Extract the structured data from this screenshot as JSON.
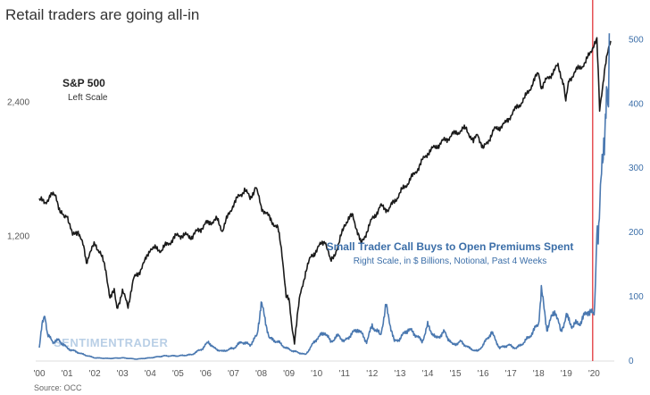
{
  "chart_data": {
    "type": "line",
    "title": "Retail traders are going all-in",
    "source": "Source: OCC",
    "watermark": "SENTIMENTRADER",
    "x_ticks": [
      "'00",
      "'01",
      "'02",
      "'03",
      "'04",
      "'05",
      "'06",
      "'07",
      "'08",
      "'09",
      "'10",
      "'11",
      "'12",
      "'13",
      "'14",
      "'15",
      "'16",
      "'17",
      "'18",
      "'19",
      "'20"
    ],
    "x_range": [
      2000.0,
      2020.6
    ],
    "vline_x": 2019.95,
    "left_axis": {
      "ticks": [
        "2,400",
        "1,200"
      ],
      "tick_values": [
        2400,
        1200
      ],
      "scale": "log",
      "range": [
        630,
        3550
      ]
    },
    "right_axis": {
      "ticks": [
        "500",
        "400",
        "300",
        "200",
        "100",
        "0"
      ],
      "tick_values": [
        500,
        400,
        300,
        200,
        100,
        0
      ],
      "range": [
        0,
        520
      ]
    },
    "annotations": {
      "sp_label": "S&P 500",
      "sp_sub": "Left Scale",
      "calls_label": "Small Trader Call Buys to Open Premiums Spent",
      "calls_sub": "Right Scale, in $ Billions, Notional, Past 4 Weeks"
    },
    "colors": {
      "sp500": "#1a1a1a",
      "calls": "#4a78b0",
      "vline": "#e0252b"
    },
    "series": [
      {
        "name": "S&P 500",
        "axis": "left",
        "x": [
          2000.0,
          2000.2,
          2000.4,
          2000.6,
          2000.75,
          2000.9,
          2001.0,
          2001.2,
          2001.4,
          2001.6,
          2001.7,
          2001.8,
          2002.0,
          2002.2,
          2002.4,
          2002.55,
          2002.7,
          2002.8,
          2003.0,
          2003.2,
          2003.4,
          2003.6,
          2003.8,
          2004.0,
          2004.4,
          2004.8,
          2005.0,
          2005.5,
          2006.0,
          2006.4,
          2006.6,
          2007.0,
          2007.4,
          2007.6,
          2007.8,
          2008.0,
          2008.3,
          2008.6,
          2008.75,
          2008.9,
          2009.0,
          2009.1,
          2009.2,
          2009.4,
          2009.6,
          2009.8,
          2010.0,
          2010.3,
          2010.5,
          2010.8,
          2011.0,
          2011.3,
          2011.6,
          2011.8,
          2012.0,
          2012.3,
          2012.6,
          2013.0,
          2013.5,
          2014.0,
          2014.5,
          2015.0,
          2015.4,
          2015.65,
          2015.8,
          2016.0,
          2016.1,
          2016.4,
          2016.8,
          2017.0,
          2017.5,
          2018.0,
          2018.1,
          2018.3,
          2018.7,
          2018.9,
          2018.98,
          2019.1,
          2019.4,
          2019.7,
          2020.0,
          2020.1,
          2020.2,
          2020.4,
          2020.6
        ],
        "values": [
          1450,
          1430,
          1480,
          1490,
          1360,
          1320,
          1350,
          1200,
          1240,
          1130,
          1050,
          1100,
          1150,
          1110,
          1000,
          880,
          900,
          830,
          900,
          840,
          960,
          1000,
          1050,
          1130,
          1120,
          1180,
          1210,
          1200,
          1280,
          1310,
          1240,
          1420,
          1530,
          1460,
          1550,
          1400,
          1320,
          1250,
          1100,
          880,
          860,
          760,
          700,
          880,
          1000,
          1080,
          1120,
          1180,
          1050,
          1150,
          1280,
          1340,
          1150,
          1230,
          1310,
          1400,
          1380,
          1500,
          1650,
          1850,
          1950,
          2050,
          2100,
          1950,
          2050,
          1880,
          1930,
          2080,
          2150,
          2250,
          2450,
          2800,
          2600,
          2700,
          2900,
          2650,
          2400,
          2700,
          2850,
          2950,
          3250,
          3300,
          2300,
          2900,
          3300
        ]
      },
      {
        "name": "Small Trader Call Buys to Open Premiums Spent",
        "axis": "right",
        "x": [
          2000.0,
          2000.1,
          2000.2,
          2000.3,
          2000.5,
          2000.7,
          2000.9,
          2001.0,
          2001.3,
          2001.6,
          2002.0,
          2002.5,
          2003.0,
          2003.5,
          2004.0,
          2004.5,
          2005.0,
          2005.5,
          2005.9,
          2006.1,
          2006.3,
          2006.6,
          2007.0,
          2007.3,
          2007.6,
          2007.85,
          2008.0,
          2008.3,
          2008.6,
          2008.9,
          2009.2,
          2009.6,
          2010.0,
          2010.3,
          2010.5,
          2010.8,
          2011.0,
          2011.2,
          2011.5,
          2011.8,
          2012.0,
          2012.3,
          2012.5,
          2012.8,
          2013.0,
          2013.3,
          2013.6,
          2013.8,
          2014.0,
          2014.3,
          2014.6,
          2014.9,
          2015.2,
          2015.5,
          2015.8,
          2016.0,
          2016.3,
          2016.6,
          2016.9,
          2017.2,
          2017.5,
          2017.8,
          2018.0,
          2018.1,
          2018.3,
          2018.6,
          2018.8,
          2019.0,
          2019.2,
          2019.5,
          2019.8,
          2020.0,
          2020.05,
          2020.1,
          2020.15,
          2020.25,
          2020.35,
          2020.45,
          2020.52,
          2020.55
        ],
        "values": [
          20,
          55,
          75,
          40,
          30,
          32,
          25,
          20,
          15,
          10,
          5,
          4,
          5,
          3,
          5,
          8,
          8,
          10,
          20,
          30,
          20,
          15,
          20,
          30,
          25,
          40,
          90,
          35,
          30,
          20,
          15,
          10,
          35,
          45,
          30,
          40,
          30,
          40,
          50,
          30,
          55,
          40,
          85,
          30,
          35,
          50,
          40,
          30,
          55,
          35,
          45,
          25,
          30,
          20,
          15,
          25,
          45,
          20,
          25,
          20,
          30,
          45,
          60,
          110,
          50,
          80,
          45,
          70,
          55,
          60,
          80,
          70,
          120,
          220,
          190,
          270,
          340,
          430,
          380,
          510
        ]
      }
    ]
  }
}
